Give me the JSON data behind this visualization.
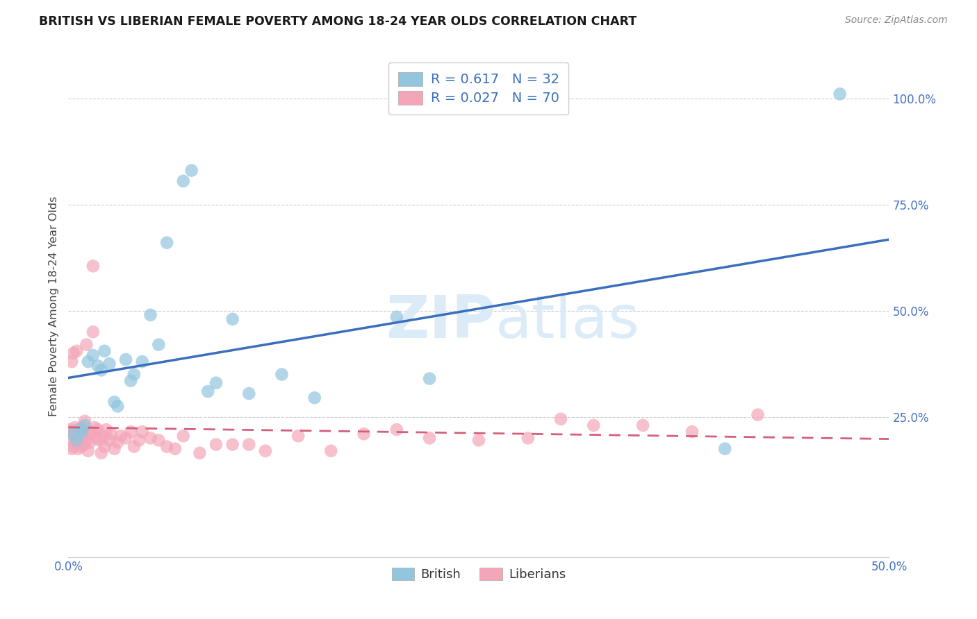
{
  "title": "BRITISH VS LIBERIAN FEMALE POVERTY AMONG 18-24 YEAR OLDS CORRELATION CHART",
  "source": "Source: ZipAtlas.com",
  "ylabel": "Female Poverty Among 18-24 Year Olds",
  "xlim": [
    0.0,
    0.5
  ],
  "ylim": [
    -0.08,
    1.1
  ],
  "xticks": [
    0.0,
    0.1,
    0.2,
    0.3,
    0.4,
    0.5
  ],
  "xtick_labels": [
    "0.0%",
    "",
    "",
    "",
    "",
    "50.0%"
  ],
  "yticks": [
    0.25,
    0.5,
    0.75,
    1.0
  ],
  "ytick_labels": [
    "25.0%",
    "50.0%",
    "75.0%",
    "100.0%"
  ],
  "british_R": 0.617,
  "british_N": 32,
  "liberian_R": 0.027,
  "liberian_N": 70,
  "british_color": "#92c5de",
  "liberian_color": "#f4a6b8",
  "british_line_color": "#3a6fbd",
  "liberian_line_color": "#d45f7a",
  "watermark_color": "#d8eaf8",
  "british_x": [
    0.003,
    0.005,
    0.007,
    0.008,
    0.01,
    0.012,
    0.015,
    0.018,
    0.02,
    0.022,
    0.025,
    0.028,
    0.03,
    0.035,
    0.038,
    0.04,
    0.045,
    0.05,
    0.055,
    0.06,
    0.07,
    0.075,
    0.085,
    0.09,
    0.1,
    0.11,
    0.13,
    0.15,
    0.2,
    0.22,
    0.4,
    0.47
  ],
  "british_y": [
    0.21,
    0.195,
    0.22,
    0.215,
    0.23,
    0.38,
    0.395,
    0.37,
    0.36,
    0.405,
    0.375,
    0.285,
    0.275,
    0.385,
    0.335,
    0.35,
    0.38,
    0.49,
    0.42,
    0.66,
    0.805,
    0.83,
    0.31,
    0.33,
    0.48,
    0.305,
    0.35,
    0.295,
    0.485,
    0.34,
    0.175,
    1.01
  ],
  "liberian_x": [
    0.001,
    0.001,
    0.002,
    0.002,
    0.002,
    0.003,
    0.003,
    0.003,
    0.004,
    0.004,
    0.005,
    0.005,
    0.005,
    0.006,
    0.006,
    0.007,
    0.007,
    0.008,
    0.008,
    0.009,
    0.01,
    0.01,
    0.011,
    0.011,
    0.012,
    0.013,
    0.013,
    0.014,
    0.015,
    0.015,
    0.016,
    0.017,
    0.018,
    0.019,
    0.02,
    0.021,
    0.022,
    0.023,
    0.025,
    0.026,
    0.028,
    0.03,
    0.032,
    0.035,
    0.038,
    0.04,
    0.043,
    0.045,
    0.05,
    0.055,
    0.06,
    0.065,
    0.07,
    0.08,
    0.09,
    0.1,
    0.11,
    0.12,
    0.14,
    0.16,
    0.18,
    0.2,
    0.22,
    0.25,
    0.28,
    0.3,
    0.32,
    0.35,
    0.38,
    0.42
  ],
  "liberian_y": [
    0.22,
    0.195,
    0.38,
    0.175,
    0.215,
    0.4,
    0.18,
    0.215,
    0.2,
    0.225,
    0.405,
    0.215,
    0.19,
    0.22,
    0.175,
    0.195,
    0.215,
    0.225,
    0.18,
    0.205,
    0.24,
    0.185,
    0.42,
    0.195,
    0.17,
    0.21,
    0.19,
    0.215,
    0.605,
    0.45,
    0.225,
    0.2,
    0.22,
    0.195,
    0.165,
    0.205,
    0.18,
    0.22,
    0.195,
    0.21,
    0.175,
    0.19,
    0.205,
    0.2,
    0.215,
    0.18,
    0.195,
    0.215,
    0.2,
    0.195,
    0.18,
    0.175,
    0.205,
    0.165,
    0.185,
    0.185,
    0.185,
    0.17,
    0.205,
    0.17,
    0.21,
    0.22,
    0.2,
    0.195,
    0.2,
    0.245,
    0.23,
    0.23,
    0.215,
    0.255
  ]
}
